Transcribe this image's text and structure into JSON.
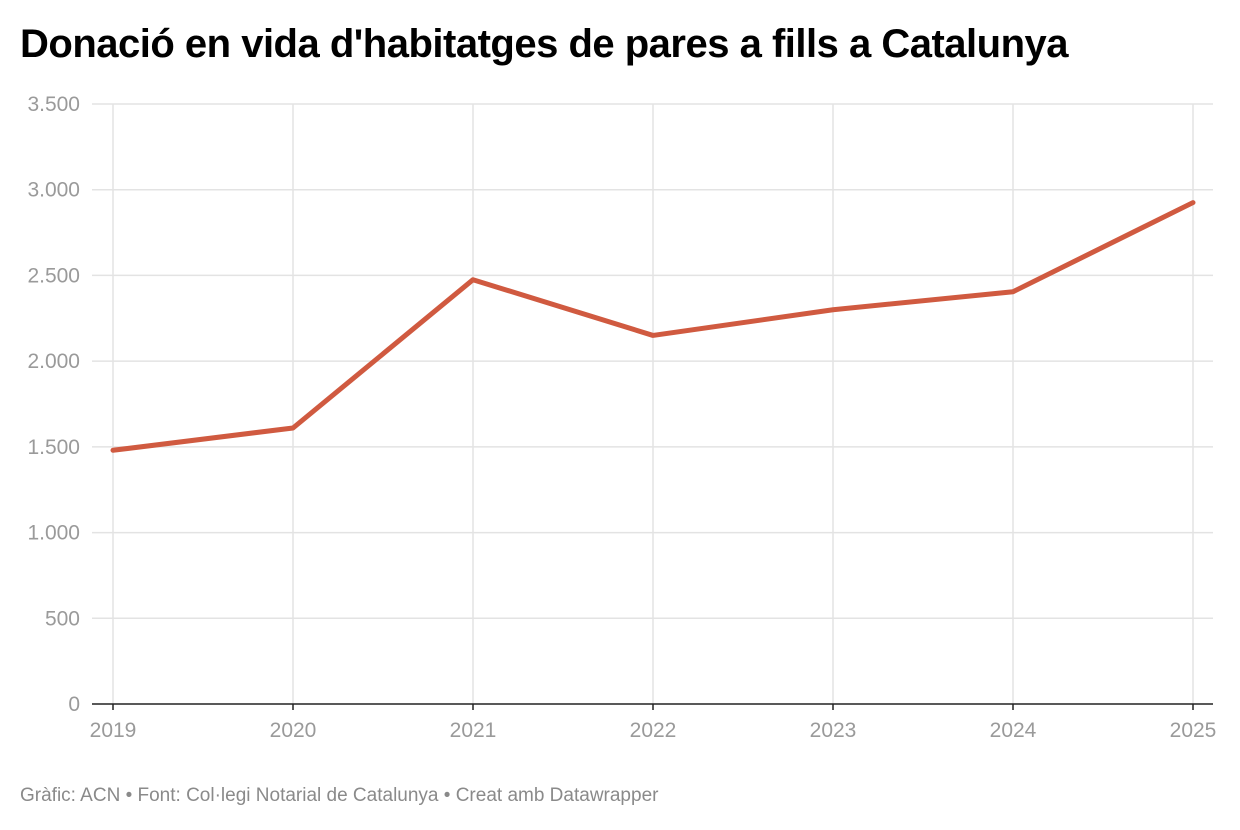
{
  "title": "Donació en vida d'habitatges de pares a fills a Catalunya",
  "footer": "Gràfic: ACN • Font: Col·legi Notarial de Catalunya • Creat amb Datawrapper",
  "chart_data": {
    "type": "line",
    "title": "Donació en vida d'habitatges de pares a fills a Catalunya",
    "xlabel": "",
    "ylabel": "",
    "x": [
      "2019",
      "2020",
      "2021",
      "2022",
      "2023",
      "2024",
      "2025"
    ],
    "series": [
      {
        "values": [
          1480,
          1610,
          2475,
          2150,
          2300,
          2405,
          2925
        ],
        "color": "#d05a40"
      }
    ],
    "ylim": [
      0,
      3500
    ],
    "yticks": [
      0,
      500,
      1000,
      1500,
      2000,
      2500,
      3000,
      3500
    ],
    "ytick_labels": [
      "0",
      "500",
      "1.000",
      "1.500",
      "2.000",
      "2.500",
      "3.000",
      "3.500"
    ],
    "grid": true,
    "legend": "none"
  }
}
